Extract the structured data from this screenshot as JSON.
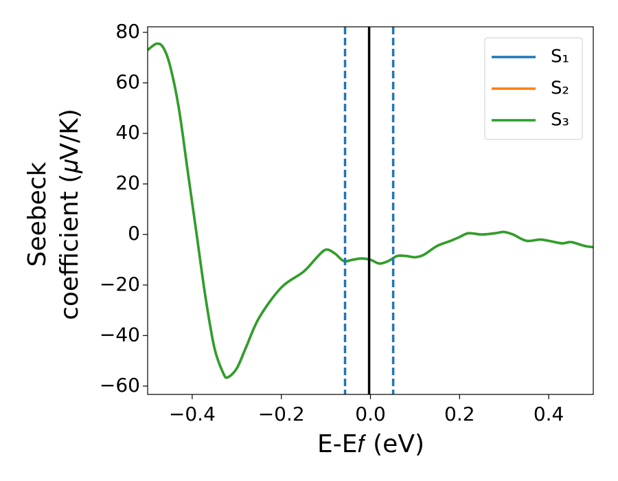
{
  "chart_data": {
    "type": "line",
    "xlabel": "E-E𝑓 (eV)",
    "ylabel": [
      "Seebeck",
      "coefficient  (𝜇V/K)"
    ],
    "x": [
      -0.5,
      -0.48,
      -0.465,
      -0.45,
      -0.43,
      -0.41,
      -0.39,
      -0.37,
      -0.35,
      -0.33,
      -0.32,
      -0.3,
      -0.28,
      -0.25,
      -0.2,
      -0.15,
      -0.12,
      -0.1,
      -0.08,
      -0.06,
      -0.04,
      -0.02,
      0,
      0.02,
      0.04,
      0.06,
      0.08,
      0.1,
      0.12,
      0.15,
      0.18,
      0.2,
      0.22,
      0.25,
      0.28,
      0.3,
      0.32,
      0.35,
      0.38,
      0.4,
      0.43,
      0.45,
      0.48,
      0.5
    ],
    "series": [
      {
        "name": "S₁",
        "color": "#1f77b4",
        "values": [
          73,
          75.5,
          74,
          67,
          50,
          25,
          0,
          -25,
          -45,
          -55,
          -56.5,
          -53,
          -45,
          -33,
          -21,
          -14.7,
          -9,
          -6,
          -7.5,
          -10.5,
          -10,
          -9.5,
          -10,
          -11.5,
          -10.5,
          -8.5,
          -8.5,
          -9,
          -8,
          -4.5,
          -2.5,
          -1,
          0.5,
          0,
          0.5,
          1,
          0,
          -2.5,
          -2,
          -2.5,
          -3.5,
          -3,
          -4.5,
          -5
        ]
      },
      {
        "name": "S₂",
        "color": "#ff7f0e",
        "values": [
          73,
          75.5,
          74,
          67,
          50,
          25,
          0,
          -25,
          -45,
          -55,
          -56.5,
          -53,
          -45,
          -33,
          -21,
          -14.7,
          -9,
          -6,
          -7.5,
          -10.5,
          -10,
          -9.5,
          -10,
          -11.5,
          -10.5,
          -8.5,
          -8.5,
          -9,
          -8,
          -4.5,
          -2.5,
          -1,
          0.5,
          0,
          0.5,
          1,
          0,
          -2.5,
          -2,
          -2.5,
          -3.5,
          -3,
          -4.5,
          -5
        ]
      },
      {
        "name": "S₃",
        "color": "#2ca02c",
        "values": [
          73,
          75.5,
          74,
          67,
          50,
          25,
          0,
          -25,
          -45,
          -55,
          -56.5,
          -53,
          -45,
          -33,
          -21,
          -14.7,
          -9,
          -6,
          -7.5,
          -10.5,
          -10,
          -9.5,
          -10,
          -11.5,
          -10.5,
          -8.5,
          -8.5,
          -9,
          -8,
          -4.5,
          -2.5,
          -1,
          0.5,
          0,
          0.5,
          1,
          0,
          -2.5,
          -2,
          -2.5,
          -3.5,
          -3,
          -4.5,
          -5
        ]
      }
    ],
    "vlines": [
      {
        "x": -0.057,
        "color": "#1f77b4",
        "style": "dashed"
      },
      {
        "x": 0.051,
        "color": "#1f77b4",
        "style": "dashed"
      },
      {
        "x": -0.003,
        "color": "#000000",
        "style": "solid"
      }
    ],
    "xlim": [
      -0.5,
      0.5
    ],
    "xticks": [
      {
        "value": -0.4,
        "label": "−0.4"
      },
      {
        "value": -0.2,
        "label": "−0.2"
      },
      {
        "value": 0,
        "label": "0.0"
      },
      {
        "value": 0.2,
        "label": "0.2"
      },
      {
        "value": 0.4,
        "label": "0.4"
      }
    ],
    "ylim": [
      -63.3,
      82.2
    ],
    "yticks": [
      {
        "value": -60,
        "label": "−60"
      },
      {
        "value": -40,
        "label": "−40"
      },
      {
        "value": -20,
        "label": "−20"
      },
      0,
      20,
      40,
      60,
      80
    ],
    "grid": false,
    "legend": "upper right"
  }
}
